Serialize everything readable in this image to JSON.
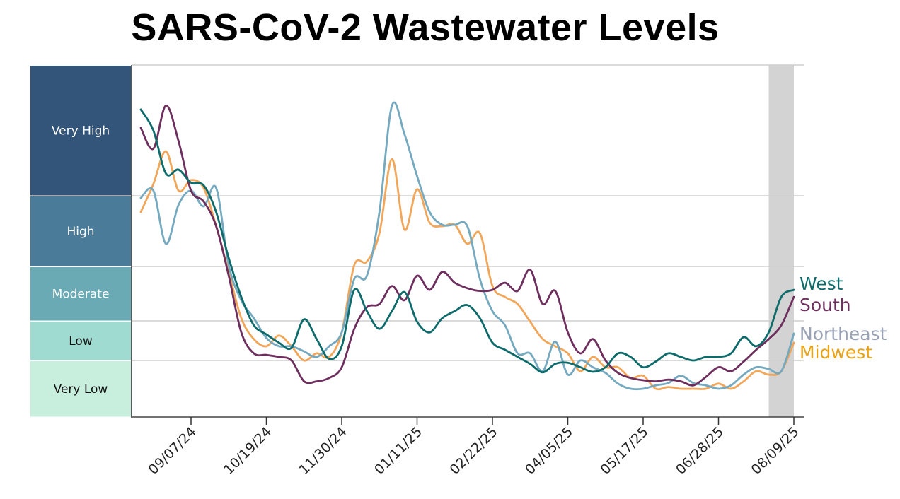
{
  "chart_data": {
    "type": "line",
    "title": "SARS-CoV-2 Wastewater Levels",
    "xlabel": "",
    "ylabel": "",
    "x_start": "2024-08-10",
    "x_interval": "weekly",
    "x_ticks": [
      "09/07/24",
      "10/19/24",
      "11/30/24",
      "01/11/25",
      "02/22/25",
      "04/05/25",
      "05/17/25",
      "06/28/25",
      "08/09/25"
    ],
    "shaded_period": [
      "2025-07-26",
      "2025-08-09"
    ],
    "shaded_color": "#d3d3d3",
    "grid": true,
    "legend_placement": "right end labels",
    "y_bands": [
      {
        "label": "Very Low",
        "range": [
          0,
          1
        ],
        "color": "#c8eedd",
        "text_color": "#111111"
      },
      {
        "label": "Low",
        "range": [
          1,
          2
        ],
        "color": "#9fdbd0",
        "text_color": "#111111"
      },
      {
        "label": "Moderate",
        "range": [
          2,
          3
        ],
        "color": "#6aaab5",
        "text_color": "#ffffff"
      },
      {
        "label": "High",
        "range": [
          3,
          4
        ],
        "color": "#4a7c99",
        "text_color": "#ffffff"
      },
      {
        "label": "Very High",
        "range": [
          4,
          5
        ],
        "color": "#34557a",
        "text_color": "#ffffff"
      }
    ],
    "series": [
      {
        "name": "West",
        "color": "#0e6b6b",
        "label_color": "#0e6b6b",
        "values": [
          4.66,
          4.5,
          4.17,
          4.2,
          4.1,
          4.08,
          3.77,
          3.12,
          2.44,
          1.89,
          1.66,
          1.45,
          1.32,
          2.03,
          1.54,
          1.04,
          1.36,
          2.57,
          2.18,
          1.8,
          2.18,
          2.53,
          1.98,
          1.71,
          2.05,
          2.18,
          2.29,
          2.05,
          1.45,
          1.27,
          1.09,
          0.94,
          0.79,
          0.94,
          0.96,
          0.88,
          0.8,
          0.88,
          1.18,
          1.09,
          0.88,
          0.98,
          1.18,
          1.09,
          1.0,
          1.09,
          1.09,
          1.18,
          1.59,
          1.36,
          1.71,
          2.44,
          2.57
        ]
      },
      {
        "name": "South",
        "color": "#6e2f5e",
        "label_color": "#6e2f5e",
        "values": [
          4.52,
          4.36,
          4.69,
          4.42,
          4.04,
          3.92,
          3.57,
          2.83,
          1.71,
          1.18,
          1.14,
          1.09,
          1.0,
          0.63,
          0.63,
          0.69,
          0.88,
          1.8,
          2.25,
          2.31,
          2.64,
          2.38,
          2.83,
          2.57,
          2.9,
          2.7,
          2.6,
          2.55,
          2.57,
          2.7,
          2.55,
          2.94,
          2.31,
          2.55,
          1.71,
          1.18,
          1.54,
          1.0,
          0.78,
          0.69,
          0.65,
          0.63,
          0.66,
          0.63,
          0.56,
          0.71,
          0.88,
          0.81,
          0.98,
          1.27,
          1.54,
          1.89,
          2.44
        ]
      },
      {
        "name": "Northeast",
        "color": "#74a9bf",
        "label_color": "#9aa3b5",
        "values": [
          3.97,
          4.04,
          3.32,
          3.87,
          4.04,
          3.85,
          4.06,
          3.02,
          2.38,
          2.05,
          1.57,
          1.36,
          1.36,
          1.23,
          1.09,
          1.36,
          1.71,
          2.77,
          2.83,
          3.77,
          4.69,
          4.47,
          4.15,
          3.77,
          3.59,
          3.59,
          3.57,
          2.77,
          2.18,
          1.89,
          1.18,
          1.18,
          0.81,
          1.48,
          0.75,
          1.0,
          0.88,
          0.78,
          0.59,
          0.5,
          0.5,
          0.56,
          0.6,
          0.73,
          0.6,
          0.56,
          0.5,
          0.56,
          0.75,
          0.88,
          0.85,
          0.81,
          1.68
        ]
      },
      {
        "name": "Midwest",
        "color": "#f2a65a",
        "label_color": "#e8a317",
        "values": [
          3.77,
          4.09,
          4.34,
          4.04,
          4.12,
          4.06,
          3.57,
          2.9,
          2.05,
          1.54,
          1.36,
          1.63,
          1.36,
          1.0,
          1.18,
          1.09,
          1.71,
          3.02,
          3.07,
          3.47,
          4.28,
          3.52,
          4.05,
          3.62,
          3.57,
          3.59,
          3.32,
          3.47,
          2.64,
          2.44,
          2.31,
          1.98,
          1.54,
          1.36,
          1.18,
          0.81,
          1.09,
          0.88,
          0.88,
          0.69,
          0.73,
          0.5,
          0.53,
          0.5,
          0.5,
          0.5,
          0.59,
          0.5,
          0.63,
          0.81,
          0.75,
          0.81,
          1.45
        ]
      }
    ]
  }
}
